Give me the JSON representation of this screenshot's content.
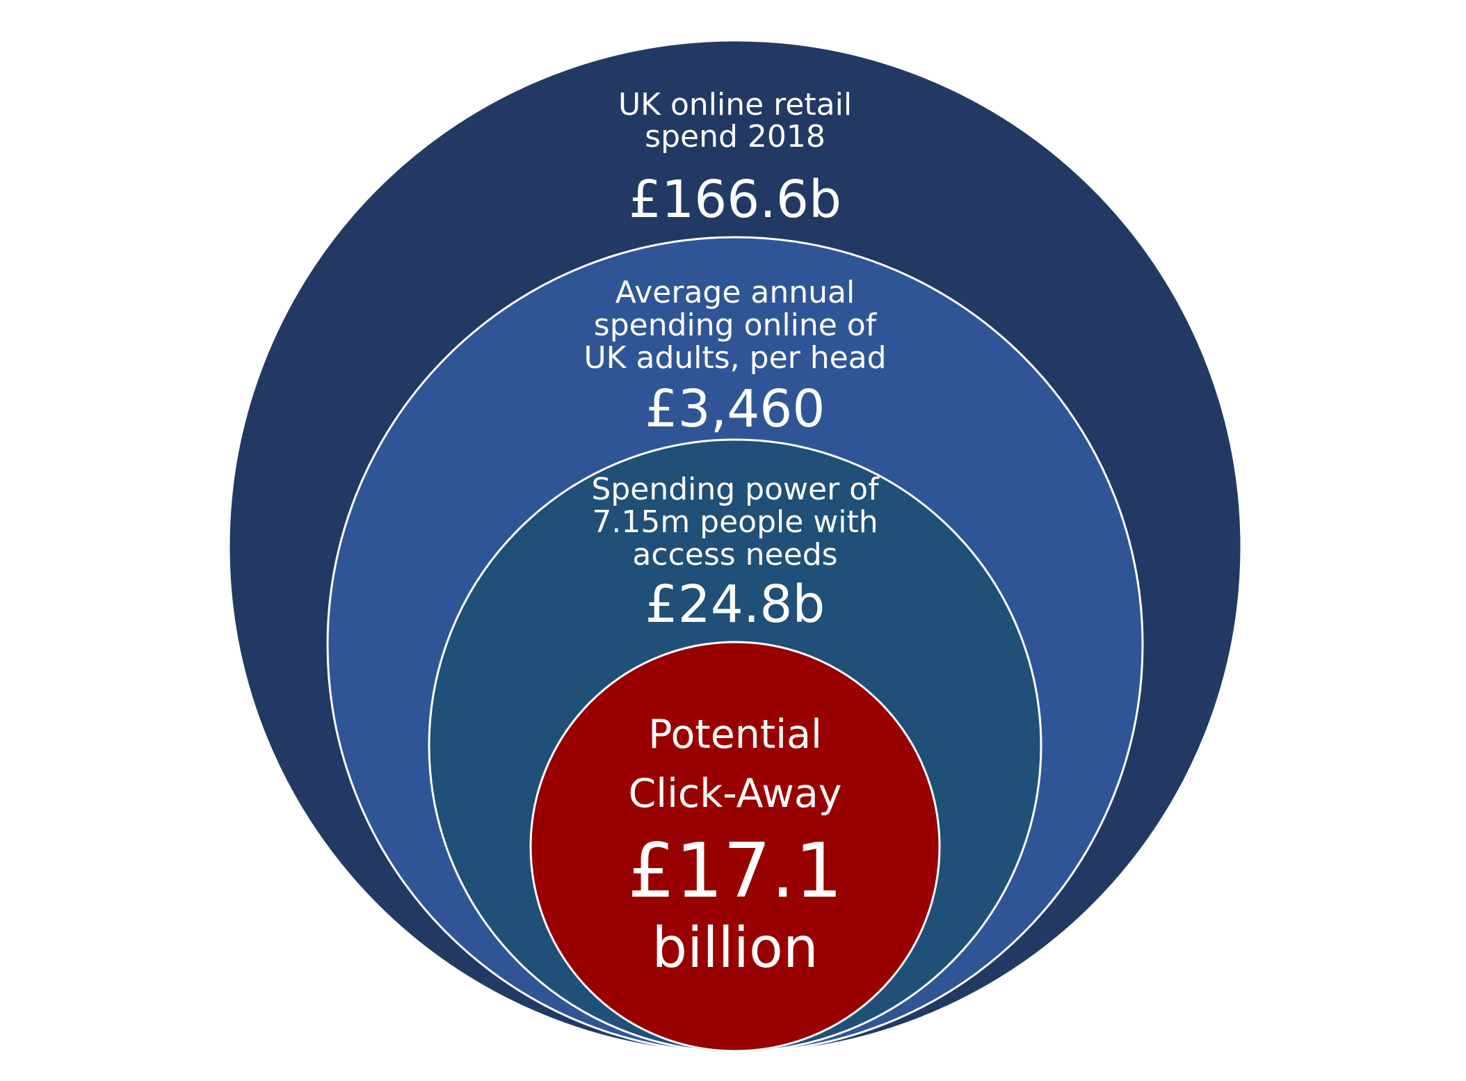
{
  "diagram": {
    "circles": [
      {
        "name": "outer",
        "color": "#223964",
        "label_lines": [
          "UK online retail",
          "spend 2018"
        ],
        "value": "£166.6b"
      },
      {
        "name": "second",
        "color": "#305597",
        "label_lines": [
          "Average annual",
          "spending online of",
          "UK adults, per head"
        ],
        "value": "£3,460"
      },
      {
        "name": "third",
        "color": "#204f78",
        "label_lines": [
          "Spending power of",
          "7.15m people with",
          "access needs"
        ],
        "value": "£24.8b"
      },
      {
        "name": "inner",
        "color": "#990000",
        "label_lines": [
          "Potential",
          "Click-Away"
        ],
        "value": "£17.1",
        "value_unit": "billion"
      }
    ],
    "stroke_color": "#ffffff"
  }
}
